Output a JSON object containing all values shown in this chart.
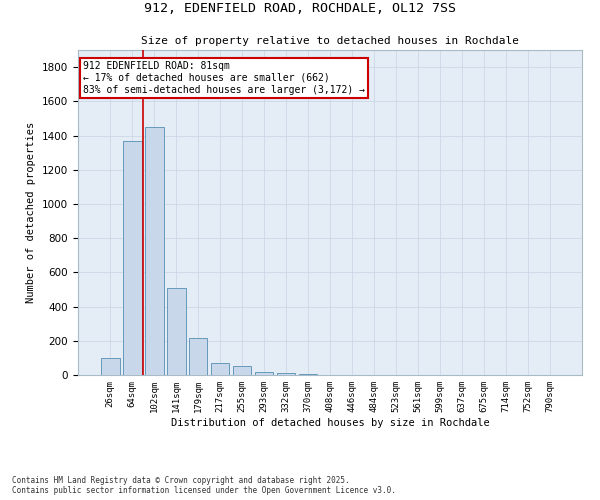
{
  "title1": "912, EDENFIELD ROAD, ROCHDALE, OL12 7SS",
  "title2": "Size of property relative to detached houses in Rochdale",
  "xlabel": "Distribution of detached houses by size in Rochdale",
  "ylabel": "Number of detached properties",
  "categories": [
    "26sqm",
    "64sqm",
    "102sqm",
    "141sqm",
    "179sqm",
    "217sqm",
    "255sqm",
    "293sqm",
    "332sqm",
    "370sqm",
    "408sqm",
    "446sqm",
    "484sqm",
    "523sqm",
    "561sqm",
    "599sqm",
    "637sqm",
    "675sqm",
    "714sqm",
    "752sqm",
    "790sqm"
  ],
  "values": [
    100,
    1370,
    1450,
    510,
    215,
    70,
    55,
    20,
    13,
    5,
    2,
    0,
    0,
    0,
    0,
    0,
    0,
    0,
    0,
    0,
    0
  ],
  "bar_color": "#c8d8ea",
  "bar_edge_color": "#6699bb",
  "grid_color": "#c8d4e4",
  "bg_color": "#e4ecf5",
  "annotation_text": "912 EDENFIELD ROAD: 81sqm\n← 17% of detached houses are smaller (662)\n83% of semi-detached houses are larger (3,172) →",
  "annotation_box_color": "#cc0000",
  "vline_color": "#cc0000",
  "vline_x": 1.47,
  "footnote1": "Contains HM Land Registry data © Crown copyright and database right 2025.",
  "footnote2": "Contains public sector information licensed under the Open Government Licence v3.0.",
  "ylim": [
    0,
    1900
  ],
  "yticks": [
    0,
    200,
    400,
    600,
    800,
    1000,
    1200,
    1400,
    1600,
    1800
  ]
}
